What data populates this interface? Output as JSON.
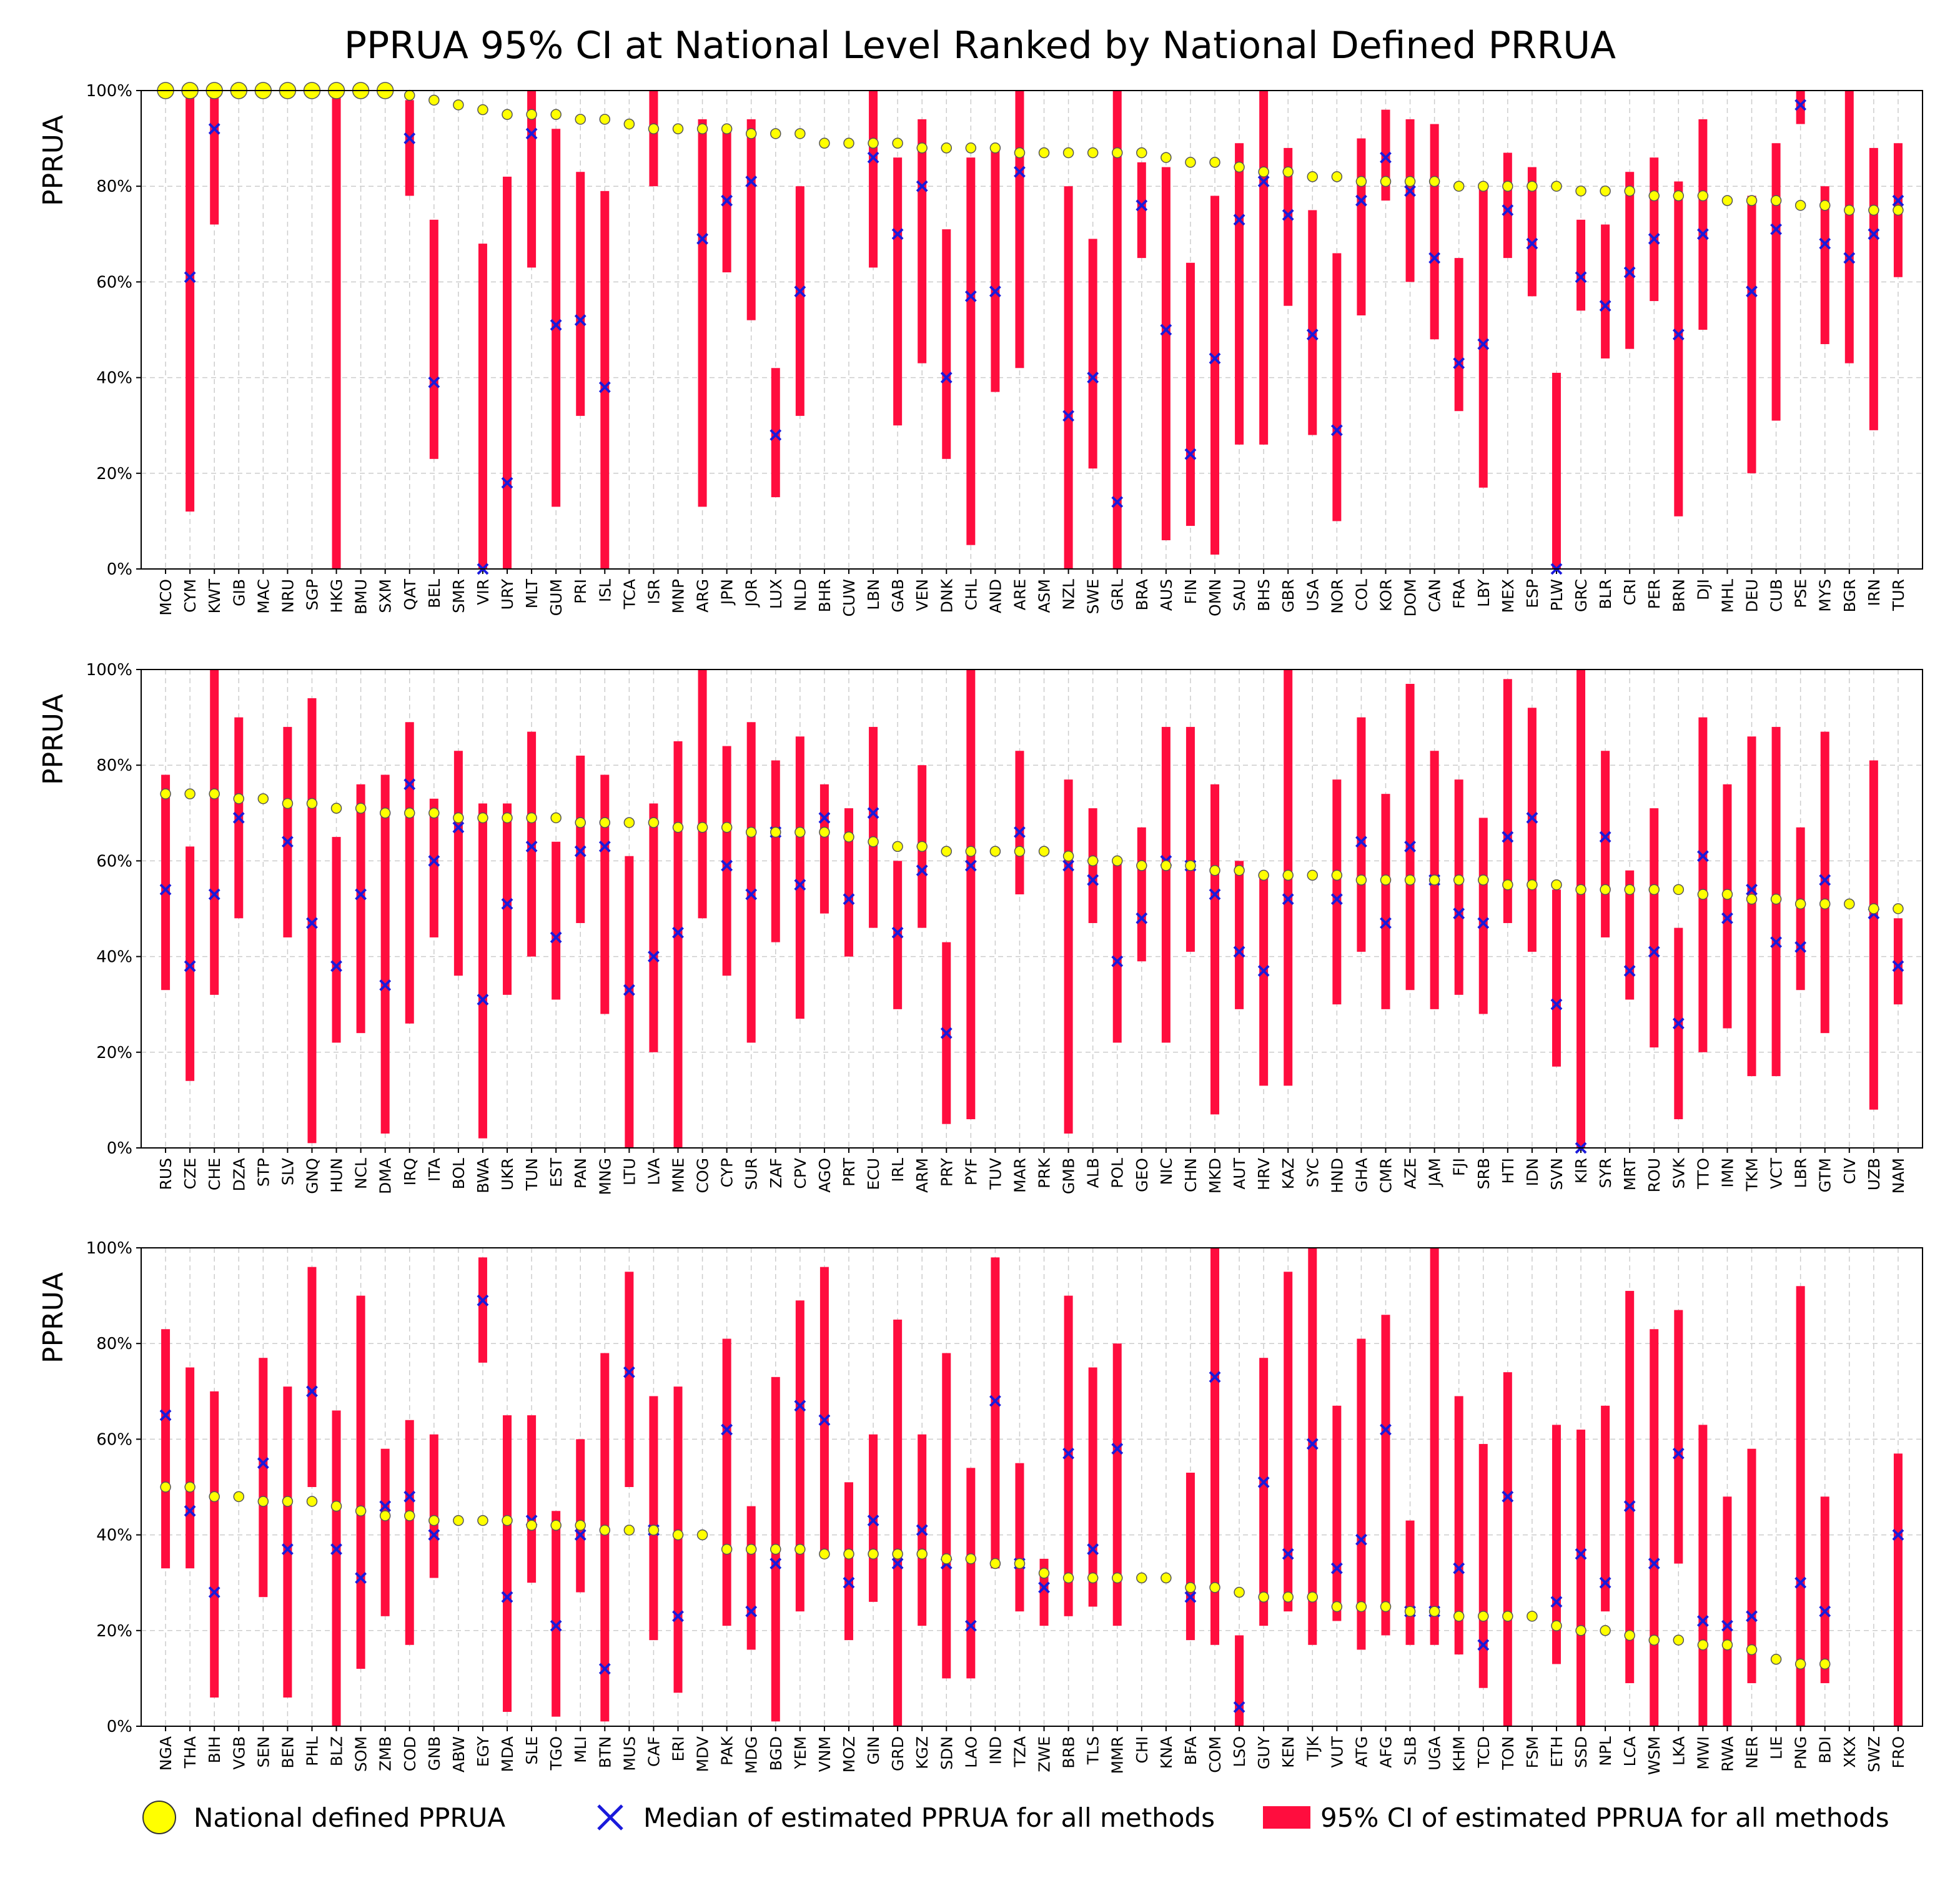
{
  "chart_data": {
    "type": "scatter",
    "title": "PPRUA 95% CI at National Level Ranked by National Defined PRRUA",
    "ylabel": "PPRUA",
    "ylim": [
      0,
      100
    ],
    "yticks": [
      "0%",
      "20%",
      "40%",
      "60%",
      "80%",
      "100%"
    ],
    "grid": true,
    "legend_placement": "bottom",
    "colors": {
      "national": "#ffff00",
      "median": "#1a1adb",
      "ci": "#ff0d3e",
      "grid": "#cccccc"
    },
    "legend": [
      "National defined PPRUA",
      "Median of estimated PPRUA for all methods",
      "95% CI of estimated PPRUA for all methods"
    ],
    "panels": [
      {
        "name": "panel-1",
        "countries": [
          "MCO",
          "CYM",
          "KWT",
          "GIB",
          "MAC",
          "NRU",
          "SGP",
          "HKG",
          "BMU",
          "SXM",
          "QAT",
          "BEL",
          "SMR",
          "VIR",
          "URY",
          "MLT",
          "GUM",
          "PRI",
          "ISL",
          "TCA",
          "ISR",
          "MNP",
          "ARG",
          "JPN",
          "JOR",
          "LUX",
          "NLD",
          "BHR",
          "CUW",
          "LBN",
          "GAB",
          "VEN",
          "DNK",
          "CHL",
          "AND",
          "ARE",
          "ASM",
          "NZL",
          "SWE",
          "GRL",
          "BRA",
          "AUS",
          "FIN",
          "OMN",
          "SAU",
          "BHS",
          "GBR",
          "USA",
          "NOR",
          "COL",
          "KOR",
          "DOM",
          "CAN",
          "FRA",
          "LBY",
          "MEX",
          "ESP",
          "PLW",
          "GRC",
          "BLR",
          "CRI",
          "PER",
          "BRN",
          "DJI",
          "MHL",
          "DEU",
          "CUB",
          "PSE",
          "MYS",
          "BGR",
          "IRN",
          "TUR"
        ],
        "national": [
          100,
          100,
          100,
          100,
          100,
          100,
          100,
          100,
          100,
          100,
          99,
          98,
          97,
          96,
          95,
          95,
          95,
          94,
          94,
          93,
          92,
          92,
          92,
          92,
          91,
          91,
          91,
          89,
          89,
          89,
          89,
          88,
          88,
          88,
          88,
          87,
          87,
          87,
          87,
          87,
          87,
          86,
          85,
          85,
          84,
          83,
          83,
          82,
          82,
          81,
          81,
          81,
          81,
          80,
          80,
          80,
          80,
          80,
          79,
          79,
          79,
          78,
          78,
          78,
          77,
          77,
          77,
          76,
          76,
          75,
          75,
          75
        ],
        "median": [
          null,
          61,
          92,
          null,
          null,
          null,
          null,
          null,
          null,
          null,
          90,
          39,
          null,
          0,
          18,
          91,
          51,
          52,
          38,
          null,
          null,
          null,
          69,
          77,
          81,
          28,
          58,
          null,
          null,
          86,
          70,
          80,
          40,
          57,
          58,
          83,
          null,
          32,
          40,
          14,
          76,
          50,
          24,
          44,
          73,
          81,
          74,
          49,
          29,
          77,
          86,
          79,
          65,
          43,
          47,
          75,
          68,
          0,
          61,
          55,
          62,
          69,
          49,
          70,
          null,
          58,
          71,
          97,
          68,
          65,
          70,
          77
        ],
        "ci_low": [
          null,
          12,
          72,
          null,
          null,
          null,
          null,
          0,
          null,
          null,
          78,
          23,
          null,
          0,
          0,
          63,
          13,
          32,
          0,
          null,
          80,
          null,
          13,
          62,
          52,
          15,
          32,
          null,
          null,
          63,
          30,
          43,
          23,
          5,
          37,
          42,
          null,
          0,
          21,
          0,
          65,
          6,
          9,
          3,
          26,
          26,
          55,
          28,
          10,
          53,
          77,
          60,
          48,
          33,
          17,
          65,
          57,
          0,
          54,
          44,
          46,
          56,
          11,
          50,
          null,
          20,
          31,
          93,
          47,
          43,
          29,
          61
        ],
        "ci_high": [
          null,
          100,
          100,
          null,
          null,
          null,
          null,
          100,
          null,
          null,
          98,
          73,
          null,
          68,
          82,
          100,
          92,
          83,
          79,
          null,
          100,
          null,
          94,
          92,
          94,
          42,
          80,
          null,
          null,
          100,
          86,
          94,
          71,
          86,
          88,
          100,
          null,
          80,
          69,
          100,
          85,
          84,
          64,
          78,
          89,
          100,
          88,
          75,
          66,
          90,
          96,
          94,
          93,
          65,
          80,
          87,
          84,
          41,
          73,
          72,
          83,
          86,
          81,
          94,
          null,
          78,
          89,
          100,
          80,
          100,
          88,
          89
        ]
      },
      {
        "name": "panel-2",
        "countries": [
          "RUS",
          "CZE",
          "CHE",
          "DZA",
          "STP",
          "SLV",
          "GNQ",
          "HUN",
          "NCL",
          "DMA",
          "IRQ",
          "ITA",
          "BOL",
          "BWA",
          "UKR",
          "TUN",
          "EST",
          "PAN",
          "MNG",
          "LTU",
          "LVA",
          "MNE",
          "COG",
          "CYP",
          "SUR",
          "ZAF",
          "CPV",
          "AGO",
          "PRT",
          "ECU",
          "IRL",
          "ARM",
          "PRY",
          "PYF",
          "TUV",
          "MAR",
          "PRK",
          "GMB",
          "ALB",
          "POL",
          "GEO",
          "NIC",
          "CHN",
          "MKD",
          "AUT",
          "HRV",
          "KAZ",
          "SYC",
          "HND",
          "GHA",
          "CMR",
          "AZE",
          "JAM",
          "FJI",
          "SRB",
          "HTI",
          "IDN",
          "SVN",
          "KIR",
          "SYR",
          "MRT",
          "ROU",
          "SVK",
          "TTO",
          "IMN",
          "TKM",
          "VCT",
          "LBR",
          "GTM",
          "CIV",
          "UZB",
          "NAM"
        ],
        "national": [
          74,
          74,
          74,
          73,
          73,
          72,
          72,
          71,
          71,
          70,
          70,
          70,
          69,
          69,
          69,
          69,
          69,
          68,
          68,
          68,
          68,
          67,
          67,
          67,
          66,
          66,
          66,
          66,
          65,
          64,
          63,
          63,
          62,
          62,
          62,
          62,
          62,
          61,
          60,
          60,
          59,
          59,
          59,
          58,
          58,
          57,
          57,
          57,
          57,
          56,
          56,
          56,
          56,
          56,
          56,
          55,
          55,
          55,
          54,
          54,
          54,
          54,
          54,
          53,
          53,
          52,
          52,
          51,
          51,
          51,
          50,
          50
        ],
        "median": [
          54,
          38,
          53,
          69,
          null,
          64,
          47,
          38,
          53,
          34,
          76,
          60,
          67,
          31,
          51,
          63,
          44,
          62,
          63,
          33,
          40,
          45,
          null,
          59,
          53,
          66,
          55,
          69,
          52,
          70,
          45,
          58,
          24,
          59,
          null,
          66,
          null,
          59,
          56,
          39,
          48,
          60,
          59,
          53,
          41,
          37,
          52,
          null,
          52,
          64,
          47,
          63,
          56,
          49,
          47,
          65,
          69,
          30,
          0,
          65,
          37,
          41,
          26,
          61,
          48,
          54,
          43,
          42,
          56,
          null,
          49,
          38
        ],
        "ci_low": [
          33,
          14,
          32,
          48,
          null,
          44,
          1,
          22,
          24,
          3,
          26,
          44,
          36,
          2,
          32,
          40,
          31,
          47,
          28,
          0,
          20,
          0,
          48,
          36,
          22,
          43,
          27,
          49,
          40,
          46,
          29,
          46,
          5,
          6,
          null,
          53,
          null,
          3,
          47,
          22,
          39,
          22,
          41,
          7,
          29,
          13,
          13,
          null,
          30,
          41,
          29,
          33,
          29,
          32,
          28,
          47,
          41,
          17,
          0,
          44,
          31,
          21,
          6,
          20,
          25,
          15,
          15,
          33,
          24,
          null,
          8,
          30
        ],
        "ci_high": [
          78,
          63,
          100,
          90,
          null,
          88,
          94,
          65,
          76,
          78,
          89,
          73,
          83,
          72,
          72,
          87,
          64,
          82,
          78,
          61,
          72,
          85,
          100,
          84,
          89,
          81,
          86,
          76,
          71,
          88,
          60,
          80,
          43,
          100,
          null,
          83,
          null,
          77,
          71,
          60,
          67,
          88,
          88,
          76,
          60,
          57,
          100,
          null,
          77,
          90,
          74,
          97,
          83,
          77,
          69,
          98,
          92,
          54,
          100,
          83,
          58,
          71,
          46,
          90,
          76,
          86,
          88,
          67,
          87,
          null,
          81,
          48
        ]
      },
      {
        "name": "panel-3",
        "countries": [
          "NGA",
          "THA",
          "BIH",
          "VGB",
          "SEN",
          "BEN",
          "PHL",
          "BLZ",
          "SOM",
          "ZMB",
          "COD",
          "GNB",
          "ABW",
          "EGY",
          "MDA",
          "SLE",
          "TGO",
          "MLI",
          "BTN",
          "MUS",
          "CAF",
          "ERI",
          "MDV",
          "PAK",
          "MDG",
          "BGD",
          "YEM",
          "VNM",
          "MOZ",
          "GIN",
          "GRD",
          "KGZ",
          "SDN",
          "LAO",
          "IND",
          "TZA",
          "ZWE",
          "BRB",
          "TLS",
          "MMR",
          "CHI",
          "KNA",
          "BFA",
          "COM",
          "LSO",
          "GUY",
          "KEN",
          "TJK",
          "VUT",
          "ATG",
          "AFG",
          "SLB",
          "UGA",
          "KHM",
          "TCD",
          "TON",
          "FSM",
          "ETH",
          "SSD",
          "NPL",
          "LCA",
          "WSM",
          "LKA",
          "MWI",
          "RWA",
          "NER",
          "LIE",
          "PNG",
          "BDI",
          "XKX",
          "SWZ",
          "FRO"
        ],
        "national": [
          50,
          50,
          48,
          48,
          47,
          47,
          47,
          46,
          45,
          44,
          44,
          43,
          43,
          43,
          43,
          42,
          42,
          42,
          41,
          41,
          41,
          40,
          40,
          37,
          37,
          37,
          37,
          36,
          36,
          36,
          36,
          36,
          35,
          35,
          34,
          34,
          32,
          31,
          31,
          31,
          31,
          31,
          29,
          29,
          28,
          27,
          27,
          27,
          25,
          25,
          25,
          24,
          24,
          23,
          23,
          23,
          23,
          21,
          20,
          20,
          19,
          18,
          18,
          17,
          17,
          16,
          14,
          13,
          13,
          null,
          null,
          null
        ],
        "median": [
          65,
          45,
          28,
          null,
          55,
          37,
          70,
          37,
          31,
          46,
          48,
          40,
          null,
          89,
          27,
          43,
          21,
          40,
          12,
          74,
          41,
          23,
          null,
          62,
          24,
          34,
          67,
          64,
          30,
          43,
          34,
          41,
          34,
          21,
          68,
          34,
          29,
          57,
          37,
          58,
          null,
          null,
          27,
          73,
          4,
          51,
          36,
          59,
          33,
          39,
          62,
          24,
          24,
          33,
          17,
          48,
          null,
          26,
          36,
          30,
          46,
          34,
          57,
          22,
          21,
          23,
          null,
          30,
          24,
          null,
          null,
          40
        ],
        "ci_low": [
          33,
          33,
          6,
          null,
          27,
          6,
          50,
          0,
          12,
          23,
          17,
          31,
          null,
          76,
          3,
          30,
          2,
          28,
          1,
          50,
          18,
          7,
          null,
          21,
          16,
          1,
          24,
          36,
          18,
          26,
          0,
          21,
          10,
          10,
          33,
          24,
          21,
          23,
          25,
          21,
          null,
          null,
          18,
          17,
          0,
          21,
          24,
          17,
          22,
          16,
          19,
          17,
          17,
          15,
          8,
          0,
          null,
          13,
          0,
          24,
          9,
          0,
          34,
          0,
          0,
          9,
          null,
          0,
          9,
          null,
          null,
          0
        ],
        "ci_high": [
          83,
          75,
          70,
          null,
          77,
          71,
          96,
          66,
          90,
          58,
          64,
          61,
          null,
          98,
          65,
          65,
          45,
          60,
          78,
          95,
          69,
          71,
          null,
          81,
          46,
          73,
          89,
          96,
          51,
          61,
          85,
          61,
          78,
          54,
          98,
          55,
          35,
          90,
          75,
          80,
          null,
          null,
          53,
          100,
          19,
          77,
          95,
          100,
          67,
          81,
          86,
          43,
          100,
          69,
          59,
          74,
          null,
          63,
          62,
          67,
          91,
          83,
          87,
          63,
          48,
          58,
          null,
          92,
          48,
          null,
          null,
          57
        ]
      }
    ]
  }
}
